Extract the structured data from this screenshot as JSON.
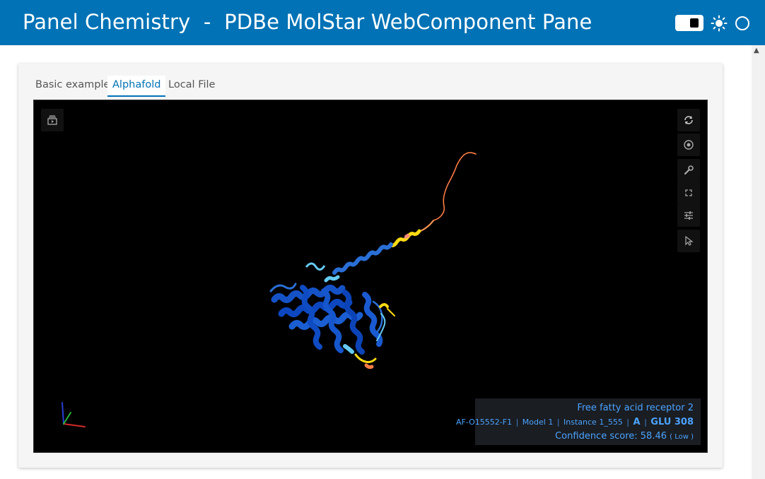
{
  "header": {
    "title": "Panel Chemistry  -  PDBe MolStar WebComponent Pane"
  },
  "tabs": [
    {
      "label": "Basic example"
    },
    {
      "label": "Alphafold"
    },
    {
      "label": "Local File"
    }
  ],
  "active_tab": "Alphafold",
  "viewer": {
    "info": {
      "protein_name": "Free fatty acid receptor 2",
      "entry_id": "AF-O15552-F1",
      "model": "Model 1",
      "instance": "Instance 1_555",
      "chain": "A",
      "residue": "GLU 308",
      "confidence_label": "Confidence score: 58.46",
      "confidence_level": "( Low )"
    },
    "toolbar_icons": [
      "reset-icon",
      "screenshot-icon",
      "wrench-icon",
      "expand-icon",
      "settings-sliders-icon",
      "selection-cursor-icon"
    ],
    "animation_icon": "animation-icon"
  },
  "colors": {
    "header_bg": "#0072b5",
    "info_text": "#4ba3ff",
    "very_high_confidence": "#0053d6",
    "confident": "#65cbf3",
    "low_confidence": "#ffdb13",
    "very_low_confidence": "#ff7d45"
  }
}
